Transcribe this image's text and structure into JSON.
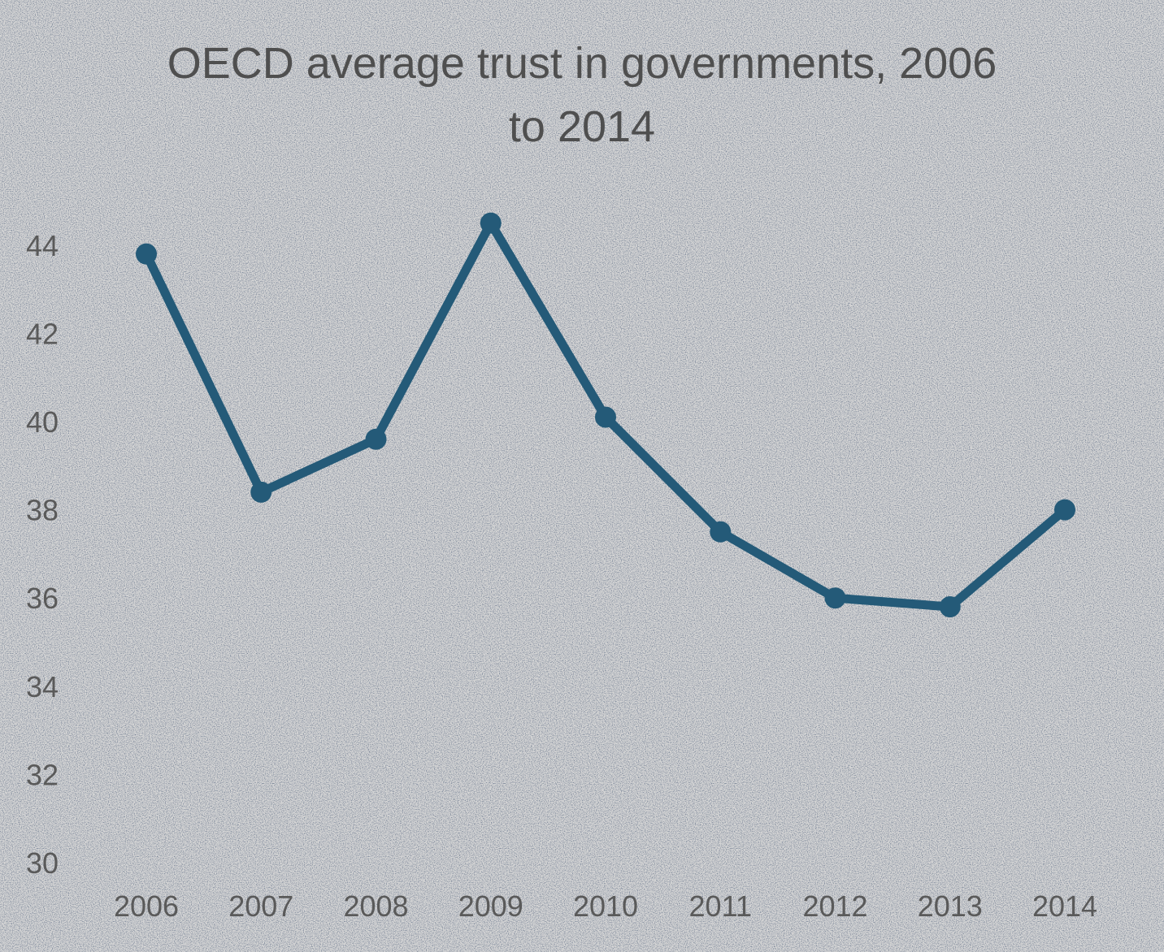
{
  "chart_data": {
    "type": "line",
    "title_lines": [
      "OECD average trust in governments, 2006",
      "to 2014"
    ],
    "xlabel": "",
    "ylabel": "",
    "categories": [
      "2006",
      "2007",
      "2008",
      "2009",
      "2010",
      "2011",
      "2012",
      "2013",
      "2014"
    ],
    "series": [
      {
        "values": [
          43.8,
          38.4,
          39.6,
          44.5,
          40.1,
          37.5,
          36.0,
          35.8,
          38.0
        ],
        "color": "#245a78"
      }
    ],
    "yticks": [
      30,
      32,
      34,
      36,
      38,
      40,
      42,
      44
    ],
    "ylim": [
      30,
      45.5
    ],
    "grid": false,
    "legend": "none",
    "background_color": "#d6d6d6",
    "text_color": "#555555"
  }
}
